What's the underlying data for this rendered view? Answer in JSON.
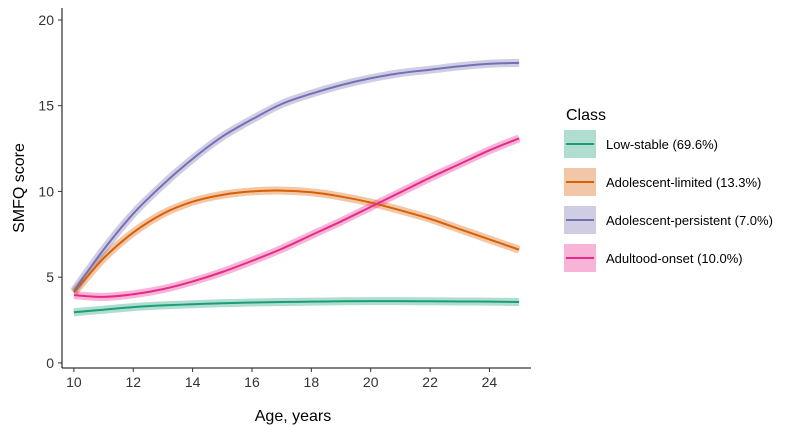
{
  "chart_data": {
    "type": "line",
    "xlabel": "Age, years",
    "ylabel": "SMFQ score",
    "xlim": [
      9.6,
      25.4
    ],
    "ylim": [
      -0.3,
      20.7
    ],
    "xticks": [
      10,
      12,
      14,
      16,
      18,
      20,
      22,
      24
    ],
    "yticks": [
      0,
      5,
      10,
      15,
      20
    ],
    "grid": false,
    "legend": {
      "title": "Class",
      "placement": "right"
    },
    "series": [
      {
        "name": "Low-stable (69.6%)",
        "color": "#1b9e77",
        "x": [
          10,
          11,
          12,
          13,
          14,
          15,
          16,
          17,
          18,
          19,
          20,
          21,
          22,
          23,
          24,
          25
        ],
        "y": [
          2.95,
          3.1,
          3.25,
          3.35,
          3.42,
          3.48,
          3.52,
          3.55,
          3.57,
          3.59,
          3.6,
          3.6,
          3.59,
          3.58,
          3.57,
          3.55
        ]
      },
      {
        "name": "Adolescent-limited (13.3%)",
        "color": "#d95f02",
        "x": [
          10,
          11,
          12,
          13,
          14,
          15,
          16,
          17,
          18,
          19,
          20,
          21,
          22,
          23,
          24,
          25
        ],
        "y": [
          4.1,
          6.1,
          7.6,
          8.7,
          9.4,
          9.8,
          10.0,
          10.05,
          9.95,
          9.7,
          9.35,
          8.9,
          8.4,
          7.8,
          7.2,
          6.6
        ]
      },
      {
        "name": "Adolescent-persistent (7.0%)",
        "color": "#7570b3",
        "x": [
          10,
          11,
          12,
          13,
          14,
          15,
          16,
          17,
          18,
          19,
          20,
          21,
          22,
          23,
          24,
          25
        ],
        "y": [
          4.2,
          6.6,
          8.7,
          10.4,
          11.9,
          13.2,
          14.2,
          15.1,
          15.7,
          16.2,
          16.6,
          16.9,
          17.1,
          17.3,
          17.45,
          17.5
        ]
      },
      {
        "name": "Adultood-onset (10.0%)",
        "color": "#e7298a",
        "x": [
          10,
          11,
          12,
          13,
          14,
          15,
          16,
          17,
          18,
          19,
          20,
          21,
          22,
          23,
          24,
          25
        ],
        "y": [
          3.95,
          3.85,
          4.0,
          4.3,
          4.75,
          5.3,
          5.95,
          6.65,
          7.45,
          8.25,
          9.1,
          9.95,
          10.8,
          11.6,
          12.4,
          13.1
        ]
      }
    ]
  }
}
